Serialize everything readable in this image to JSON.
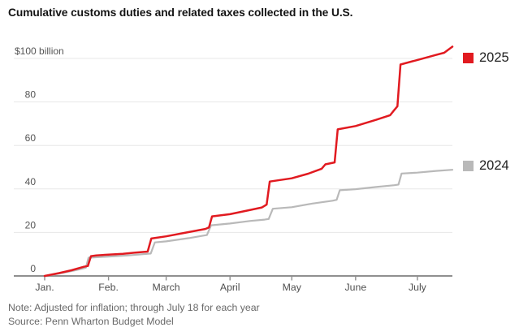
{
  "header": {
    "title": "Cumulative customs duties and related taxes collected in the U.S."
  },
  "footer": {
    "note": "Note: Adjusted for inflation; through July 18 for each year",
    "source": "Source: Penn Wharton Budget Model"
  },
  "colors": {
    "red_2025": "#e11a20",
    "gray_2024": "#b9b9b9",
    "gridline": "#e7e7e7",
    "axis": "#8f8f8f",
    "axis_label": "#555555",
    "title_text": "#141414",
    "footnote_text": "#686868",
    "legend_text": "#222222"
  },
  "chart_data": {
    "type": "line",
    "title": "Cumulative customs duties and related taxes collected in the U.S.",
    "subtitle": "",
    "xlabel": "",
    "ylabel": "",
    "y_unit": "USD billions",
    "y_top_label": "$100 billion",
    "ylim": [
      0,
      100
    ],
    "grid": "horizontal",
    "legend_position": "right of line ends",
    "x_domain_days": [
      0,
      198
    ],
    "x_ticks": [
      {
        "day": 0,
        "label": "Jan."
      },
      {
        "day": 31,
        "label": "Feb."
      },
      {
        "day": 59,
        "label": "March"
      },
      {
        "day": 90,
        "label": "April"
      },
      {
        "day": 120,
        "label": "May"
      },
      {
        "day": 151,
        "label": "June"
      },
      {
        "day": 181,
        "label": "July"
      }
    ],
    "y_ticks": [
      {
        "value": 0,
        "label": "0"
      },
      {
        "value": 20,
        "label": "20"
      },
      {
        "value": 40,
        "label": "40"
      },
      {
        "value": 60,
        "label": "60"
      },
      {
        "value": 80,
        "label": "80"
      },
      {
        "value": 100,
        "label": "$100 billion"
      }
    ],
    "note": "Note: Adjusted for inflation; through July 18 for each year",
    "source": "Source: Penn Wharton Budget Model",
    "series": [
      {
        "name": "2025",
        "color": "#e11a20",
        "final_value_billion": 105.4,
        "points": [
          [
            0,
            0
          ],
          [
            7,
            1.3
          ],
          [
            13,
            2.6
          ],
          [
            19,
            4.2
          ],
          [
            21,
            4.6
          ],
          [
            22.5,
            9.1
          ],
          [
            25,
            9.4
          ],
          [
            31,
            9.8
          ],
          [
            38,
            10.2
          ],
          [
            44,
            10.7
          ],
          [
            50,
            11.2
          ],
          [
            51.8,
            17.2
          ],
          [
            59,
            18.2
          ],
          [
            68,
            19.8
          ],
          [
            78,
            21.6
          ],
          [
            79.8,
            22.3
          ],
          [
            81.3,
            27.4
          ],
          [
            90,
            28.4
          ],
          [
            99,
            30.2
          ],
          [
            105.5,
            31.5
          ],
          [
            107.8,
            32.8
          ],
          [
            109.3,
            43.4
          ],
          [
            120,
            44.9
          ],
          [
            128,
            47.0
          ],
          [
            134.5,
            49.3
          ],
          [
            136.3,
            51.3
          ],
          [
            140.8,
            52.2
          ],
          [
            142.3,
            67.4
          ],
          [
            151,
            68.9
          ],
          [
            161,
            71.8
          ],
          [
            167.8,
            73.9
          ],
          [
            169.3,
            75.7
          ],
          [
            171.3,
            78.0
          ],
          [
            172.8,
            97.2
          ],
          [
            181,
            99.3
          ],
          [
            190,
            101.6
          ],
          [
            194,
            102.6
          ],
          [
            198,
            105.4
          ]
        ]
      },
      {
        "name": "2024",
        "color": "#b9b9b9",
        "final_value_billion": 48.8,
        "points": [
          [
            0,
            0
          ],
          [
            7,
            1.1
          ],
          [
            13,
            2.2
          ],
          [
            18.5,
            3.4
          ],
          [
            20,
            3.8
          ],
          [
            21.3,
            8.4
          ],
          [
            31,
            8.9
          ],
          [
            40,
            9.4
          ],
          [
            51.5,
            10.3
          ],
          [
            53.5,
            15.4
          ],
          [
            59,
            15.9
          ],
          [
            70,
            17.4
          ],
          [
            78.8,
            18.8
          ],
          [
            80.8,
            23.3
          ],
          [
            90,
            24.1
          ],
          [
            100,
            25.3
          ],
          [
            106.8,
            25.9
          ],
          [
            108.8,
            26.2
          ],
          [
            110.8,
            30.9
          ],
          [
            120,
            31.6
          ],
          [
            130,
            33.3
          ],
          [
            139.8,
            34.6
          ],
          [
            141.8,
            35.0
          ],
          [
            143.3,
            39.4
          ],
          [
            151,
            39.9
          ],
          [
            161,
            40.9
          ],
          [
            169.8,
            41.7
          ],
          [
            171.8,
            42.0
          ],
          [
            173.3,
            47.1
          ],
          [
            181,
            47.5
          ],
          [
            190,
            48.3
          ],
          [
            198,
            48.8
          ]
        ]
      }
    ]
  }
}
